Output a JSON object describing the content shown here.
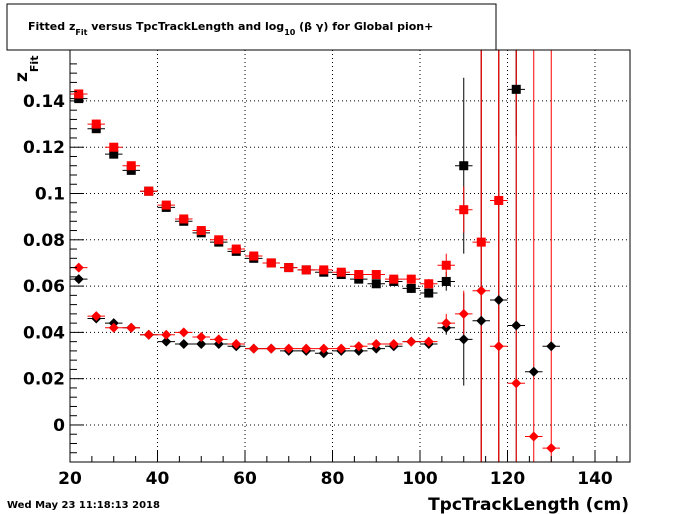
{
  "chart_data": {
    "type": "scatter",
    "title_parts": {
      "pre": "Fitted  z",
      "sub1": "Fit",
      "mid": "  versus TpcTrackLength and log",
      "sub2": "10",
      "post": " (β γ) for Global pion+"
    },
    "xlabel": "TpcTrackLength (cm)",
    "ylabel_main": "z",
    "ylabel_sub": "Fit",
    "footer": "Wed May 23 11:18:13 2018",
    "xlim": [
      20,
      148
    ],
    "ylim": [
      -0.016,
      0.162
    ],
    "x_ticks": [
      20,
      40,
      60,
      80,
      100,
      120,
      140
    ],
    "x_tick_labels": [
      "20",
      "40",
      "60",
      "80",
      "100",
      "120",
      "140"
    ],
    "y_ticks": [
      0,
      0.02,
      0.04,
      0.06,
      0.08,
      0.1,
      0.12,
      0.14
    ],
    "y_tick_labels": [
      "0",
      "0.02",
      "0.04",
      "0.06",
      "0.08",
      "0.1",
      "0.12",
      "0.14"
    ],
    "grid": true,
    "x_error": 2,
    "series": [
      {
        "marker": "square",
        "color": "#000000",
        "points": [
          {
            "x": 22,
            "y": 0.141,
            "e": 0.001
          },
          {
            "x": 26,
            "y": 0.128,
            "e": 0.001
          },
          {
            "x": 30,
            "y": 0.117,
            "e": 0.001
          },
          {
            "x": 34,
            "y": 0.11,
            "e": 0.001
          },
          {
            "x": 38,
            "y": 0.101,
            "e": 0.001
          },
          {
            "x": 42,
            "y": 0.094,
            "e": 0.001
          },
          {
            "x": 46,
            "y": 0.088,
            "e": 0.001
          },
          {
            "x": 50,
            "y": 0.083,
            "e": 0.001
          },
          {
            "x": 54,
            "y": 0.079,
            "e": 0.001
          },
          {
            "x": 58,
            "y": 0.075,
            "e": 0.001
          },
          {
            "x": 62,
            "y": 0.072,
            "e": 0.001
          },
          {
            "x": 66,
            "y": 0.07,
            "e": 0.001
          },
          {
            "x": 70,
            "y": 0.068,
            "e": 0.001
          },
          {
            "x": 74,
            "y": 0.067,
            "e": 0.001
          },
          {
            "x": 78,
            "y": 0.066,
            "e": 0.001
          },
          {
            "x": 82,
            "y": 0.065,
            "e": 0.001
          },
          {
            "x": 86,
            "y": 0.063,
            "e": 0.001
          },
          {
            "x": 90,
            "y": 0.061,
            "e": 0.001
          },
          {
            "x": 94,
            "y": 0.062,
            "e": 0.001
          },
          {
            "x": 98,
            "y": 0.059,
            "e": 0.002
          },
          {
            "x": 102,
            "y": 0.057,
            "e": 0.002
          },
          {
            "x": 106,
            "y": 0.062,
            "e": 0.004
          },
          {
            "x": 110,
            "y": 0.112,
            "e": 0.038
          },
          {
            "x": 122,
            "y": 0.145,
            "e": 0.02
          }
        ]
      },
      {
        "marker": "square",
        "color": "#ff0000",
        "points": [
          {
            "x": 22,
            "y": 0.143,
            "e": 0.001
          },
          {
            "x": 26,
            "y": 0.13,
            "e": 0.001
          },
          {
            "x": 30,
            "y": 0.12,
            "e": 0.001
          },
          {
            "x": 34,
            "y": 0.112,
            "e": 0.001
          },
          {
            "x": 38,
            "y": 0.101,
            "e": 0.001
          },
          {
            "x": 42,
            "y": 0.095,
            "e": 0.001
          },
          {
            "x": 46,
            "y": 0.089,
            "e": 0.001
          },
          {
            "x": 50,
            "y": 0.084,
            "e": 0.001
          },
          {
            "x": 54,
            "y": 0.08,
            "e": 0.001
          },
          {
            "x": 58,
            "y": 0.076,
            "e": 0.001
          },
          {
            "x": 62,
            "y": 0.073,
            "e": 0.001
          },
          {
            "x": 66,
            "y": 0.07,
            "e": 0.001
          },
          {
            "x": 70,
            "y": 0.068,
            "e": 0.001
          },
          {
            "x": 74,
            "y": 0.067,
            "e": 0.001
          },
          {
            "x": 78,
            "y": 0.067,
            "e": 0.001
          },
          {
            "x": 82,
            "y": 0.066,
            "e": 0.001
          },
          {
            "x": 86,
            "y": 0.065,
            "e": 0.001
          },
          {
            "x": 90,
            "y": 0.065,
            "e": 0.001
          },
          {
            "x": 94,
            "y": 0.063,
            "e": 0.001
          },
          {
            "x": 98,
            "y": 0.063,
            "e": 0.002
          },
          {
            "x": 102,
            "y": 0.061,
            "e": 0.002
          },
          {
            "x": 106,
            "y": 0.069,
            "e": 0.005
          },
          {
            "x": 110,
            "y": 0.093,
            "e": 0.01
          },
          {
            "x": 114,
            "y": 0.079,
            "e": 0.2
          },
          {
            "x": 118,
            "y": 0.097,
            "e": 0.2
          }
        ]
      },
      {
        "marker": "diamond",
        "color": "#000000",
        "points": [
          {
            "x": 22,
            "y": 0.063,
            "e": 0.001
          },
          {
            "x": 26,
            "y": 0.046,
            "e": 0.001
          },
          {
            "x": 30,
            "y": 0.044,
            "e": 0.001
          },
          {
            "x": 34,
            "y": 0.042,
            "e": 0.001
          },
          {
            "x": 38,
            "y": 0.039,
            "e": 0.001
          },
          {
            "x": 42,
            "y": 0.036,
            "e": 0.001
          },
          {
            "x": 46,
            "y": 0.035,
            "e": 0.001
          },
          {
            "x": 50,
            "y": 0.035,
            "e": 0.001
          },
          {
            "x": 54,
            "y": 0.035,
            "e": 0.001
          },
          {
            "x": 58,
            "y": 0.034,
            "e": 0.001
          },
          {
            "x": 62,
            "y": 0.033,
            "e": 0.001
          },
          {
            "x": 66,
            "y": 0.033,
            "e": 0.001
          },
          {
            "x": 70,
            "y": 0.032,
            "e": 0.001
          },
          {
            "x": 74,
            "y": 0.032,
            "e": 0.001
          },
          {
            "x": 78,
            "y": 0.031,
            "e": 0.001
          },
          {
            "x": 82,
            "y": 0.032,
            "e": 0.001
          },
          {
            "x": 86,
            "y": 0.032,
            "e": 0.001
          },
          {
            "x": 90,
            "y": 0.033,
            "e": 0.001
          },
          {
            "x": 94,
            "y": 0.034,
            "e": 0.001
          },
          {
            "x": 98,
            "y": 0.036,
            "e": 0.002
          },
          {
            "x": 102,
            "y": 0.035,
            "e": 0.002
          },
          {
            "x": 106,
            "y": 0.042,
            "e": 0.003
          },
          {
            "x": 110,
            "y": 0.037,
            "e": 0.02
          },
          {
            "x": 114,
            "y": 0.045,
            "e": 0.2
          },
          {
            "x": 118,
            "y": 0.054,
            "e": 0.2
          },
          {
            "x": 122,
            "y": 0.043,
            "e": 0.2
          },
          {
            "x": 126,
            "y": 0.023,
            "e": 0.0
          },
          {
            "x": 130,
            "y": 0.034,
            "e": 0.0
          }
        ]
      },
      {
        "marker": "diamond",
        "color": "#ff0000",
        "points": [
          {
            "x": 22,
            "y": 0.068,
            "e": 0.001
          },
          {
            "x": 26,
            "y": 0.047,
            "e": 0.001
          },
          {
            "x": 30,
            "y": 0.042,
            "e": 0.001
          },
          {
            "x": 34,
            "y": 0.042,
            "e": 0.001
          },
          {
            "x": 38,
            "y": 0.039,
            "e": 0.001
          },
          {
            "x": 42,
            "y": 0.039,
            "e": 0.001
          },
          {
            "x": 46,
            "y": 0.04,
            "e": 0.001
          },
          {
            "x": 50,
            "y": 0.038,
            "e": 0.001
          },
          {
            "x": 54,
            "y": 0.037,
            "e": 0.001
          },
          {
            "x": 58,
            "y": 0.035,
            "e": 0.001
          },
          {
            "x": 62,
            "y": 0.033,
            "e": 0.001
          },
          {
            "x": 66,
            "y": 0.033,
            "e": 0.001
          },
          {
            "x": 70,
            "y": 0.033,
            "e": 0.001
          },
          {
            "x": 74,
            "y": 0.033,
            "e": 0.001
          },
          {
            "x": 78,
            "y": 0.033,
            "e": 0.001
          },
          {
            "x": 82,
            "y": 0.033,
            "e": 0.001
          },
          {
            "x": 86,
            "y": 0.034,
            "e": 0.001
          },
          {
            "x": 90,
            "y": 0.035,
            "e": 0.001
          },
          {
            "x": 94,
            "y": 0.035,
            "e": 0.001
          },
          {
            "x": 98,
            "y": 0.036,
            "e": 0.002
          },
          {
            "x": 102,
            "y": 0.036,
            "e": 0.002
          },
          {
            "x": 106,
            "y": 0.044,
            "e": 0.004
          },
          {
            "x": 110,
            "y": 0.048,
            "e": 0.01
          },
          {
            "x": 114,
            "y": 0.058,
            "e": 0.2
          },
          {
            "x": 118,
            "y": 0.034,
            "e": 0.2
          },
          {
            "x": 122,
            "y": 0.018,
            "e": 0.2
          },
          {
            "x": 126,
            "y": -0.005,
            "e": 0.2
          },
          {
            "x": 130,
            "y": -0.01,
            "e": 0.2
          }
        ]
      }
    ]
  }
}
